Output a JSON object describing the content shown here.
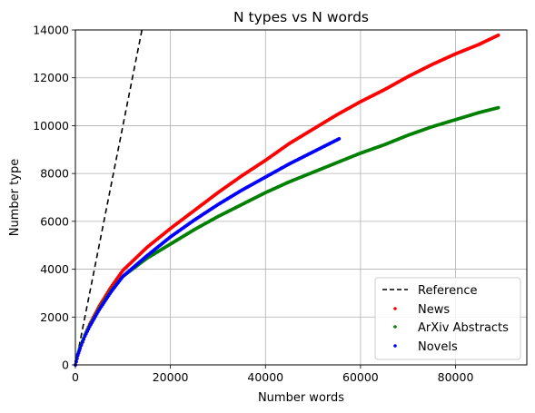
{
  "chart_data": {
    "type": "scatter",
    "title": "N types vs N words",
    "xlabel": "Number words",
    "ylabel": "Number type",
    "xlim": [
      0,
      95000
    ],
    "ylim": [
      0,
      14000
    ],
    "xticks": [
      0,
      20000,
      40000,
      60000,
      80000
    ],
    "yticks": [
      0,
      2000,
      4000,
      6000,
      8000,
      10000,
      12000,
      14000
    ],
    "xtick_labels": [
      "0",
      "20000",
      "40000",
      "60000",
      "80000"
    ],
    "ytick_labels": [
      "0",
      "2000",
      "4000",
      "6000",
      "8000",
      "10000",
      "12000",
      "14000"
    ],
    "grid": true,
    "legend_position": "lower-right",
    "reference": {
      "name": "Reference",
      "style": "dashed",
      "color": "#000000",
      "x": [
        0,
        14000
      ],
      "y": [
        0,
        14000
      ]
    },
    "series": [
      {
        "name": "News",
        "color": "#ff0000",
        "x": [
          0,
          500,
          1000,
          2000,
          3000,
          5000,
          7500,
          10000,
          15000,
          20000,
          25000,
          30000,
          35000,
          40000,
          45000,
          50000,
          55000,
          60000,
          65000,
          70000,
          75000,
          80000,
          85000,
          89000
        ],
        "y": [
          0,
          400,
          700,
          1250,
          1700,
          2450,
          3250,
          3950,
          4900,
          5700,
          6450,
          7200,
          7900,
          8550,
          9250,
          9850,
          10450,
          11000,
          11500,
          12050,
          12550,
          13000,
          13400,
          13780
        ]
      },
      {
        "name": "ArXiv Abstracts",
        "color": "#008000",
        "x": [
          0,
          500,
          1000,
          2000,
          3000,
          5000,
          7500,
          10000,
          15000,
          20000,
          25000,
          30000,
          35000,
          40000,
          45000,
          50000,
          55000,
          60000,
          65000,
          70000,
          75000,
          80000,
          85000,
          89000
        ],
        "y": [
          0,
          450,
          750,
          1250,
          1650,
          2350,
          3100,
          3700,
          4450,
          5050,
          5650,
          6200,
          6700,
          7200,
          7650,
          8050,
          8450,
          8850,
          9200,
          9600,
          9950,
          10250,
          10550,
          10750
        ]
      },
      {
        "name": "Novels",
        "color": "#0000ff",
        "x": [
          0,
          500,
          1000,
          2000,
          3000,
          5000,
          7500,
          10000,
          15000,
          20000,
          25000,
          30000,
          35000,
          40000,
          45000,
          50000,
          55500
        ],
        "y": [
          0,
          400,
          700,
          1200,
          1600,
          2300,
          3050,
          3700,
          4550,
          5350,
          6050,
          6700,
          7300,
          7850,
          8400,
          8900,
          9450
        ]
      }
    ]
  }
}
